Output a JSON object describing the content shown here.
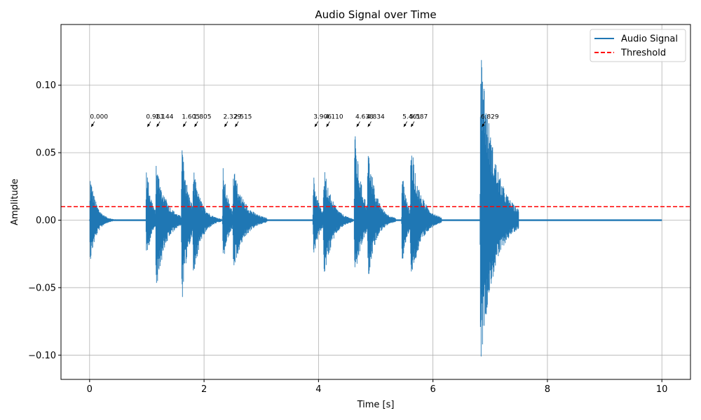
{
  "chart_data": {
    "type": "line",
    "title": "Audio Signal over Time",
    "xlabel": "Time [s]",
    "ylabel": "Amplitude",
    "xlim": [
      -0.5,
      10.5
    ],
    "ylim": [
      -0.118,
      0.145
    ],
    "x_ticks": [
      0,
      2,
      4,
      6,
      8,
      10
    ],
    "y_ticks": [
      -0.1,
      -0.05,
      0.0,
      0.05,
      0.1
    ],
    "x_tick_labels": [
      "0",
      "2",
      "4",
      "6",
      "8",
      "10"
    ],
    "y_tick_labels": [
      "−0.10",
      "−0.05",
      "0.00",
      "0.05",
      "0.10"
    ],
    "grid": true,
    "legend_position": "top-right",
    "series": [
      {
        "name": "Audio Signal",
        "color": "#1f77b4",
        "duration_s": 10.0,
        "bursts": [
          {
            "start": 0.0,
            "end": 0.2,
            "max": 0.034,
            "min": -0.032
          },
          {
            "start": 0.98,
            "end": 1.15,
            "max": 0.043,
            "min": -0.031
          },
          {
            "start": 1.15,
            "end": 1.45,
            "max": 0.045,
            "min": -0.054
          },
          {
            "start": 1.6,
            "end": 1.8,
            "max": 0.062,
            "min": -0.065
          },
          {
            "start": 1.8,
            "end": 2.05,
            "max": 0.04,
            "min": -0.045
          },
          {
            "start": 2.32,
            "end": 2.5,
            "max": 0.04,
            "min": -0.034
          },
          {
            "start": 2.5,
            "end": 2.85,
            "max": 0.039,
            "min": -0.038
          },
          {
            "start": 3.9,
            "end": 4.08,
            "max": 0.035,
            "min": -0.03
          },
          {
            "start": 4.08,
            "end": 4.35,
            "max": 0.042,
            "min": -0.047
          },
          {
            "start": 4.62,
            "end": 4.85,
            "max": 0.068,
            "min": -0.05
          },
          {
            "start": 4.85,
            "end": 5.1,
            "max": 0.058,
            "min": -0.046
          },
          {
            "start": 5.45,
            "end": 5.6,
            "max": 0.04,
            "min": -0.038
          },
          {
            "start": 5.6,
            "end": 5.9,
            "max": 0.06,
            "min": -0.052
          },
          {
            "start": 6.82,
            "end": 7.25,
            "max": 0.135,
            "min": -0.107
          }
        ]
      },
      {
        "name": "Threshold",
        "color": "#ff0000",
        "style": "dashed",
        "value": 0.01
      }
    ],
    "annotations": [
      {
        "x": 0.0,
        "label": "0.000"
      },
      {
        "x": 0.981,
        "label": "0.981"
      },
      {
        "x": 1.144,
        "label": "1.144"
      },
      {
        "x": 1.605,
        "label": "1.605"
      },
      {
        "x": 1.805,
        "label": "1.805"
      },
      {
        "x": 2.329,
        "label": "2.329"
      },
      {
        "x": 2.515,
        "label": "2.515"
      },
      {
        "x": 3.906,
        "label": "3.906"
      },
      {
        "x": 4.11,
        "label": "4.110"
      },
      {
        "x": 4.638,
        "label": "4.638"
      },
      {
        "x": 4.834,
        "label": "4.834"
      },
      {
        "x": 5.461,
        "label": "5.461"
      },
      {
        "x": 5.587,
        "label": "5.587"
      },
      {
        "x": 6.829,
        "label": "6.829"
      }
    ],
    "annotation_y": 0.07
  }
}
